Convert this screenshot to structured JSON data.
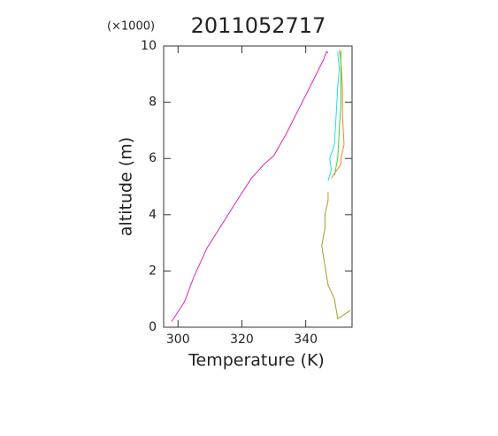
{
  "chart_data": {
    "type": "line",
    "title": "2011052717",
    "multiplier": "(×1000)",
    "x_label": "Temperature (K)",
    "y_label": "altitude (m)",
    "xlim": [
      295.5,
      354.5
    ],
    "xticks": [
      300,
      320,
      340
    ],
    "ylim": [
      0,
      10
    ],
    "yticks": [
      0,
      2,
      4,
      6,
      8,
      10
    ],
    "series": [
      {
        "color": "#e020c0",
        "x": [
          298,
          302,
          305,
          309,
          314,
          319,
          323,
          327,
          330,
          334,
          338,
          342,
          345.5,
          346.5,
          347
        ],
        "values": [
          0.2,
          0.9,
          1.8,
          2.8,
          3.7,
          4.6,
          5.3,
          5.8,
          6.1,
          6.9,
          7.8,
          8.7,
          9.5,
          9.8,
          9.75
        ]
      },
      {
        "color": "#a0a020",
        "x": [
          354,
          350,
          349,
          347,
          346,
          345,
          346,
          346,
          347,
          347
        ],
        "values": [
          0.6,
          0.3,
          1.0,
          1.5,
          2.2,
          2.9,
          3.5,
          4.0,
          4.5,
          4.8
        ]
      },
      {
        "color": "#20e0e0",
        "x": [
          347,
          348,
          347.5,
          349,
          349.5,
          350,
          350.5,
          350
        ],
        "values": [
          5.2,
          5.6,
          6.0,
          6.5,
          7.5,
          8.5,
          9.2,
          9.8
        ]
      },
      {
        "color": "#ff8020",
        "x": [
          348,
          351,
          351,
          352,
          351.5,
          351.5,
          351,
          350.5
        ],
        "values": [
          5.3,
          5.8,
          6.0,
          6.5,
          7.5,
          8.5,
          9.5,
          9.85
        ]
      },
      {
        "color": "#40d040",
        "x": [
          349,
          350,
          350.5,
          351,
          351,
          351
        ],
        "values": [
          5.4,
          6.0,
          7.0,
          8.0,
          9.0,
          9.85
        ]
      }
    ]
  }
}
